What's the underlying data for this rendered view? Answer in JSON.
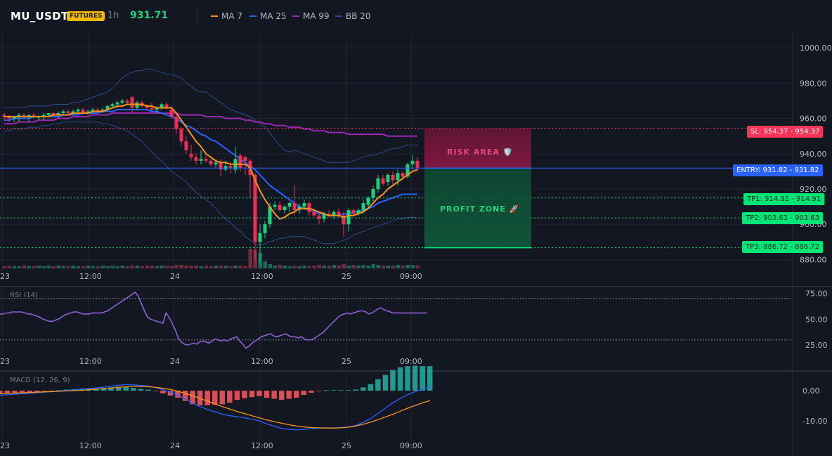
{
  "header": {
    "symbol": "MU_USDT",
    "market_badge": "FUTURES",
    "timeframe": "1h",
    "last_price": "931.71",
    "indicators": [
      {
        "label": "MA 7",
        "color": "#f7931a"
      },
      {
        "label": "MA 25",
        "color": "#2962ff"
      },
      {
        "label": "MA 99",
        "color": "#9c27b0"
      },
      {
        "label": "BB 20",
        "color": "#2d4a8a"
      }
    ]
  },
  "zones": {
    "risk": "RISK AREA 🛡️",
    "profit": "PROFIT ZONE 🚀"
  },
  "levels": {
    "sl": {
      "label": "SL: 954.37",
      "value": 954.37,
      "color": "#f23658"
    },
    "entry": {
      "label": "ENTRY: 931.82",
      "value": 931.82,
      "color": "#2962ff"
    },
    "tp1": {
      "label": "TP1: 914.91",
      "value": 914.91,
      "color": "#00e676"
    },
    "tp2": {
      "label": "TP2: 903.63",
      "value": 903.63,
      "color": "#00e676"
    },
    "tp3": {
      "label": "TP3: 886.72",
      "value": 886.72,
      "color": "#00e676"
    }
  },
  "price_axis_ticks": [
    "1000.00",
    "980.00",
    "960.00",
    "940.00",
    "920.00",
    "900.00",
    "880.00"
  ],
  "time_axis_ticks": [
    "23",
    "12:00",
    "24",
    "12:00",
    "25",
    "09:00"
  ],
  "rsi": {
    "label": "RSI (14)",
    "ticks": [
      "75.00",
      "50.00",
      "25.00"
    ],
    "upper": 70,
    "lower": 30
  },
  "macd": {
    "label": "MACD (12, 26, 9)",
    "ticks": [
      "0.00",
      "-10.00"
    ]
  },
  "chart_data": {
    "type": "candlestick",
    "price_ylim": [
      875,
      1008
    ],
    "candles": [
      [
        962,
        963,
        959,
        961
      ],
      [
        961,
        962,
        958,
        960
      ],
      [
        960,
        961,
        958,
        961
      ],
      [
        961,
        963,
        958,
        962
      ],
      [
        962,
        963,
        960,
        961
      ],
      [
        961,
        962,
        958,
        962
      ],
      [
        962,
        963,
        960,
        961
      ],
      [
        961,
        962,
        959,
        961
      ],
      [
        961,
        963,
        959,
        962
      ],
      [
        962,
        963,
        961,
        963
      ],
      [
        963,
        964,
        961,
        962
      ],
      [
        962,
        964,
        960,
        963
      ],
      [
        963,
        965,
        962,
        964
      ],
      [
        964,
        965,
        962,
        963
      ],
      [
        963,
        965,
        962,
        964
      ],
      [
        964,
        966,
        963,
        965
      ],
      [
        965,
        966,
        962,
        963
      ],
      [
        963,
        965,
        962,
        964
      ],
      [
        964,
        966,
        963,
        965
      ],
      [
        965,
        966,
        963,
        964
      ],
      [
        964,
        966,
        963,
        965
      ],
      [
        965,
        968,
        964,
        967
      ],
      [
        967,
        969,
        966,
        968
      ],
      [
        968,
        970,
        966,
        969
      ],
      [
        969,
        971,
        968,
        970
      ],
      [
        970,
        971,
        968,
        969
      ],
      [
        972,
        973,
        963,
        966
      ],
      [
        966,
        970,
        965,
        969
      ],
      [
        969,
        970,
        966,
        967
      ],
      [
        967,
        968,
        965,
        966
      ],
      [
        966,
        969,
        964,
        965
      ],
      [
        965,
        967,
        963,
        966
      ],
      [
        966,
        969,
        965,
        968
      ],
      [
        968,
        969,
        965,
        966
      ],
      [
        965,
        967,
        960,
        961
      ],
      [
        961,
        962,
        951,
        954
      ],
      [
        954,
        955,
        945,
        947
      ],
      [
        947,
        950,
        940,
        942
      ],
      [
        940,
        945,
        936,
        938
      ],
      [
        938,
        940,
        934,
        936
      ],
      [
        936,
        942,
        934,
        937
      ],
      [
        937,
        939,
        935,
        936
      ],
      [
        936,
        937,
        933,
        934
      ],
      [
        934,
        936,
        932,
        935
      ],
      [
        935,
        937,
        927,
        931
      ],
      [
        931,
        936,
        930,
        933
      ],
      [
        933,
        935,
        929,
        932
      ],
      [
        931,
        944,
        929,
        937
      ],
      [
        939,
        940,
        930,
        932
      ],
      [
        938,
        939,
        928,
        936
      ],
      [
        936,
        937,
        915,
        928
      ],
      [
        928,
        929,
        880,
        890
      ],
      [
        890,
        900,
        878,
        895
      ],
      [
        895,
        902,
        892,
        900
      ],
      [
        900,
        912,
        898,
        910
      ],
      [
        910,
        913,
        908,
        911
      ],
      [
        911,
        913,
        907,
        908
      ],
      [
        908,
        911,
        906,
        910
      ],
      [
        910,
        913,
        907,
        912
      ],
      [
        912,
        922,
        905,
        908
      ],
      [
        908,
        912,
        906,
        910
      ],
      [
        910,
        914,
        908,
        912
      ],
      [
        912,
        913,
        905,
        907
      ],
      [
        907,
        909,
        904,
        905
      ],
      [
        905,
        907,
        900,
        903
      ],
      [
        903,
        907,
        901,
        906
      ],
      [
        906,
        908,
        904,
        905
      ],
      [
        905,
        908,
        903,
        907
      ],
      [
        907,
        909,
        904,
        905
      ],
      [
        905,
        907,
        893,
        900
      ],
      [
        900,
        909,
        896,
        908
      ],
      [
        908,
        909,
        905,
        906
      ],
      [
        906,
        909,
        905,
        908
      ],
      [
        908,
        914,
        906,
        912
      ],
      [
        911,
        916,
        909,
        915
      ],
      [
        915,
        922,
        913,
        920
      ],
      [
        920,
        928,
        918,
        926
      ],
      [
        926,
        928,
        922,
        923
      ],
      [
        924,
        929,
        922,
        928
      ],
      [
        928,
        930,
        922,
        925
      ],
      [
        925,
        931,
        922,
        929
      ],
      [
        929,
        930,
        925,
        927
      ],
      [
        927,
        935,
        926,
        934
      ],
      [
        934,
        939,
        931,
        936
      ],
      [
        936,
        938,
        930,
        932
      ]
    ],
    "ma7": [
      961,
      961,
      961,
      961,
      961,
      961,
      961,
      961,
      961,
      961,
      962,
      962,
      962,
      962,
      963,
      963,
      963,
      963,
      964,
      964,
      964,
      965,
      966,
      967,
      967,
      968,
      968,
      968,
      968,
      967,
      967,
      966,
      966,
      966,
      966,
      963,
      959,
      955,
      951,
      947,
      944,
      940,
      938,
      936,
      935,
      935,
      934,
      934,
      934,
      934,
      932,
      925,
      919,
      914,
      910,
      906,
      903,
      904,
      906,
      907,
      909,
      909,
      909,
      908,
      907,
      906,
      905,
      905,
      905,
      904,
      905,
      905,
      906,
      907,
      909,
      912,
      915,
      917,
      920,
      922,
      924,
      926,
      928,
      930,
      931
    ],
    "ma25": [
      959,
      959,
      960,
      960,
      960,
      960,
      961,
      961,
      961,
      961,
      961,
      961,
      962,
      962,
      962,
      962,
      963,
      963,
      963,
      963,
      964,
      964,
      964,
      965,
      965,
      965,
      965,
      965,
      965,
      965,
      964,
      964,
      963,
      962,
      961,
      960,
      958,
      956,
      955,
      953,
      951,
      950,
      948,
      947,
      945,
      943,
      941,
      939,
      937,
      935,
      933,
      931,
      928,
      925,
      922,
      920,
      918,
      916,
      914,
      912,
      910,
      909,
      908,
      907,
      906,
      906,
      905,
      905,
      905,
      906,
      906,
      907,
      907,
      908,
      909,
      910,
      912,
      913,
      914,
      915,
      916,
      917,
      917,
      917,
      917
    ],
    "ma99": [
      957,
      957,
      957,
      958,
      958,
      958,
      958,
      959,
      959,
      959,
      959,
      960,
      960,
      960,
      961,
      961,
      961,
      961,
      962,
      962,
      962,
      962,
      963,
      963,
      963,
      963,
      963,
      963,
      963,
      963,
      963,
      963,
      963,
      963,
      963,
      963,
      962,
      962,
      962,
      962,
      962,
      961,
      961,
      961,
      961,
      960,
      960,
      960,
      960,
      959,
      959,
      958,
      958,
      957,
      957,
      956,
      956,
      956,
      955,
      955,
      955,
      954,
      954,
      953,
      953,
      953,
      952,
      952,
      952,
      952,
      951,
      951,
      951,
      951,
      951,
      951,
      951,
      951,
      950,
      950,
      950,
      950,
      950,
      950,
      950
    ],
    "bb_upper": [
      966,
      966,
      966,
      966,
      966,
      967,
      967,
      967,
      967,
      967,
      968,
      968,
      968,
      968,
      969,
      969,
      970,
      971,
      972,
      973,
      974,
      975,
      977,
      980,
      983,
      985,
      986,
      987,
      987,
      988,
      988,
      987,
      986,
      985,
      985,
      984,
      983,
      980,
      978,
      976,
      975,
      975,
      973,
      971,
      969,
      967,
      965,
      964,
      963,
      962,
      961,
      959,
      957,
      955,
      952,
      948,
      945,
      942,
      941,
      942,
      941,
      940,
      939,
      938,
      937,
      936,
      935,
      935,
      935,
      935,
      935,
      936,
      937,
      938,
      939,
      939,
      940,
      941,
      942,
      943,
      943,
      944,
      945,
      945,
      945
    ],
    "bb_lower": [
      953,
      953,
      954,
      954,
      954,
      955,
      955,
      955,
      956,
      956,
      957,
      957,
      958,
      958,
      958,
      958,
      958,
      958,
      958,
      958,
      957,
      957,
      956,
      955,
      954,
      953,
      951,
      949,
      947,
      944,
      941,
      938,
      936,
      933,
      930,
      928,
      926,
      924,
      921,
      918,
      916,
      914,
      912,
      909,
      906,
      903,
      901,
      898,
      896,
      893,
      891,
      889,
      888,
      889,
      890,
      891,
      892,
      892,
      893,
      893,
      893,
      893,
      892,
      891,
      890,
      889,
      889,
      889,
      890,
      891,
      892,
      894,
      895,
      896,
      897,
      898,
      899,
      900,
      901,
      902,
      903,
      903,
      904,
      904,
      904
    ],
    "volume": [
      3,
      4,
      3,
      3,
      4,
      3,
      3,
      4,
      3,
      4,
      3,
      4,
      3,
      3,
      4,
      3,
      3,
      4,
      3,
      3,
      4,
      3,
      4,
      3,
      4,
      3,
      4,
      4,
      3,
      4,
      4,
      3,
      4,
      4,
      3,
      5,
      5,
      4,
      4,
      4,
      3,
      4,
      3,
      4,
      4,
      4,
      3,
      4,
      4,
      3,
      28,
      26,
      22,
      10,
      6,
      4,
      5,
      4,
      3,
      4,
      3,
      4,
      3,
      4,
      5,
      4,
      4,
      5,
      4,
      6,
      4,
      5,
      4,
      5,
      4,
      6,
      5,
      4,
      4,
      4,
      5,
      4,
      5,
      5,
      4
    ],
    "rsi": [
      55,
      55,
      56,
      56,
      57,
      57,
      57,
      57,
      56,
      55,
      55,
      54,
      53,
      52,
      50,
      49,
      48,
      48,
      49,
      50,
      52,
      54,
      55,
      56,
      57,
      57,
      56,
      55,
      55,
      55,
      56,
      56,
      56,
      56,
      57,
      58,
      60,
      62,
      64,
      66,
      68,
      70,
      72,
      74,
      76,
      72,
      65,
      58,
      52,
      50,
      49,
      48,
      47,
      46,
      56,
      52,
      46,
      40,
      32,
      28,
      26,
      25,
      26,
      27,
      26,
      28,
      29,
      28,
      27,
      29,
      31,
      30,
      29,
      30,
      29,
      31,
      32,
      33,
      29,
      26,
      22,
      24,
      27,
      29,
      31,
      33,
      34,
      35,
      36,
      34,
      33,
      34,
      35,
      36,
      34,
      33,
      33,
      32,
      33,
      31,
      30,
      30,
      31,
      33,
      35,
      37,
      40,
      43,
      46,
      49,
      52,
      54,
      55,
      56,
      55,
      56,
      57,
      58,
      58,
      57,
      55,
      56,
      58,
      60,
      61,
      59,
      58,
      57,
      56,
      56,
      56,
      56,
      56,
      56,
      56,
      56,
      56,
      56,
      56,
      56
    ],
    "macd_line": [
      -1.5,
      -1.3,
      -1.2,
      -1.0,
      -0.9,
      -0.7,
      -0.5,
      -0.3,
      -0.1,
      0.1,
      0.3,
      0.5,
      0.7,
      0.9,
      1.2,
      1.5,
      1.8,
      2.0,
      1.9,
      1.7,
      1.5,
      1.0,
      0.3,
      -0.5,
      -1.5,
      -2.8,
      -4.2,
      -5.3,
      -6.2,
      -7.0,
      -7.8,
      -8.3,
      -8.6,
      -9.0,
      -9.5,
      -10.0,
      -11.0,
      -11.8,
      -12.5,
      -12.8,
      -13.0,
      -12.8,
      -12.6,
      -12.4,
      -12.3,
      -12.3,
      -12.2,
      -12.0,
      -11.5,
      -10.5,
      -9.2,
      -7.5,
      -5.8,
      -4.0,
      -2.5,
      -1.3,
      -0.3,
      0.5,
      1.2
    ],
    "macd_signal": [
      -1.0,
      -0.9,
      -0.8,
      -0.7,
      -0.6,
      -0.5,
      -0.4,
      -0.3,
      -0.2,
      -0.1,
      0.0,
      0.1,
      0.3,
      0.5,
      0.7,
      0.9,
      1.1,
      1.3,
      1.4,
      1.4,
      1.3,
      1.1,
      0.8,
      0.4,
      -0.2,
      -0.9,
      -1.7,
      -2.6,
      -3.5,
      -4.4,
      -5.3,
      -6.1,
      -6.9,
      -7.6,
      -8.3,
      -9.0,
      -9.7,
      -10.3,
      -10.8,
      -11.3,
      -11.7,
      -12.0,
      -12.2,
      -12.3,
      -12.4,
      -12.4,
      -12.3,
      -12.1,
      -11.7,
      -11.1,
      -10.4,
      -9.6,
      -8.7,
      -7.8,
      -6.8,
      -5.8,
      -4.9,
      -4.0,
      -3.3
    ],
    "macd_hist": [
      -0.5,
      -0.4,
      -0.4,
      -0.3,
      -0.3,
      -0.2,
      -0.1,
      0.0,
      0.1,
      0.2,
      0.3,
      0.4,
      0.4,
      0.4,
      0.5,
      0.6,
      0.7,
      0.7,
      0.5,
      0.3,
      0.2,
      -0.1,
      -0.5,
      -0.9,
      -1.3,
      -1.9,
      -2.5,
      -2.7,
      -2.7,
      -2.6,
      -2.5,
      -2.2,
      -1.7,
      -1.4,
      -1.2,
      -1.0,
      -1.3,
      -1.5,
      -1.7,
      -1.5,
      -1.3,
      -0.8,
      -0.4,
      -0.1,
      0.1,
      0.1,
      0.1,
      0.1,
      0.2,
      0.6,
      1.2,
      2.1,
      2.9,
      3.8,
      4.3,
      4.5,
      4.6,
      4.5,
      4.5
    ]
  }
}
